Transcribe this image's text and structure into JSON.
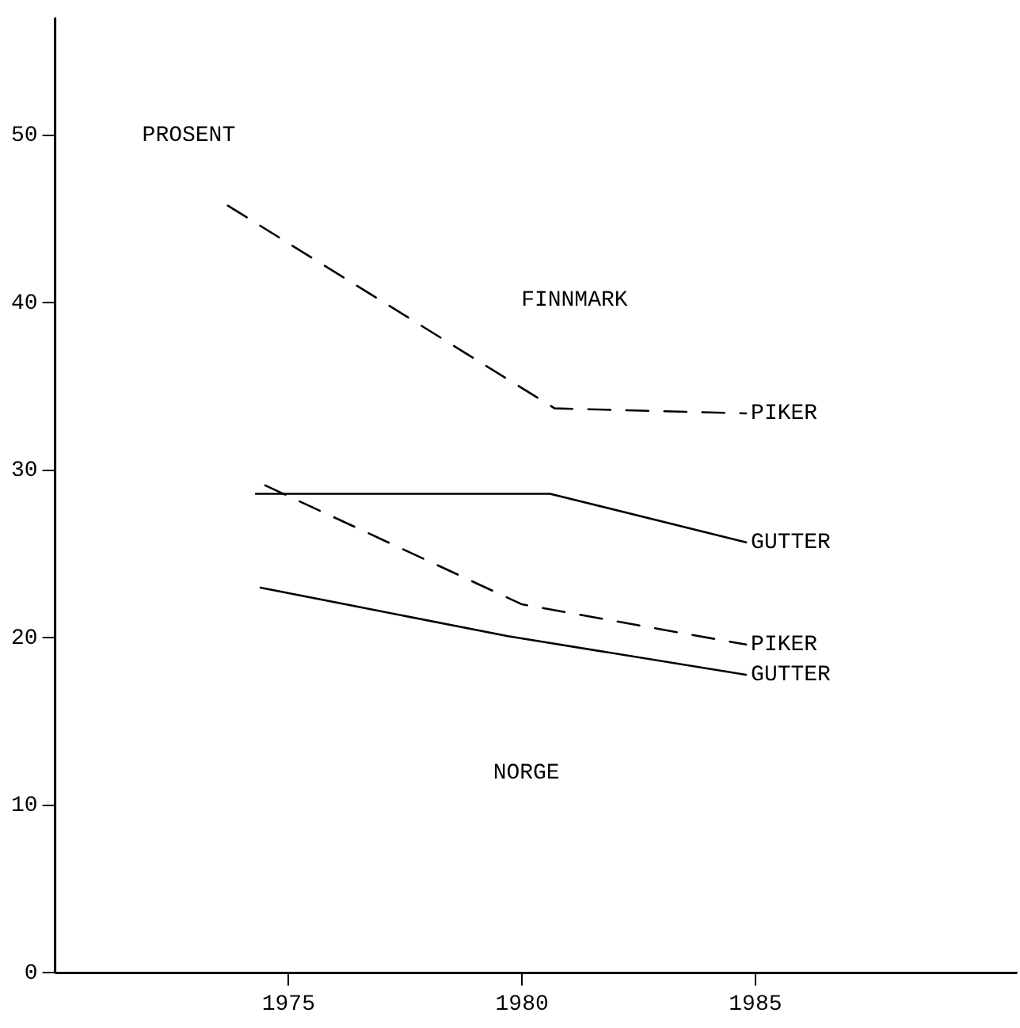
{
  "chart_data": {
    "type": "line",
    "ylabel": "PROSENT",
    "annotations": [
      "FINNMARK",
      "NORGE"
    ],
    "series": [
      {
        "name": "PIKER",
        "color": "#000000",
        "line_style": "dashed",
        "x": [
          1973.7,
          1980.7,
          1984.8
        ],
        "values": [
          45.8,
          33.7,
          33.4
        ]
      },
      {
        "name": "GUTTER",
        "color": "#000000",
        "line_style": "solid",
        "x": [
          1974.3,
          1980.6,
          1984.8
        ],
        "values": [
          28.6,
          28.6,
          25.7
        ]
      },
      {
        "name": "PIKER",
        "color": "#000000",
        "line_style": "dashed",
        "x": [
          1974.5,
          1980,
          1984.8
        ],
        "values": [
          29.1,
          22.0,
          19.6
        ]
      },
      {
        "name": "GUTTER",
        "color": "#000000",
        "line_style": "solid",
        "x": [
          1974.4,
          1979.7,
          1984.8
        ],
        "values": [
          23.0,
          20.1,
          17.8
        ]
      }
    ],
    "xlim": [
      1970,
      1990.6
    ],
    "xticks": [
      1975,
      1980,
      1985
    ],
    "ylim": [
      0,
      57
    ],
    "yticks": [
      0,
      10,
      20,
      30,
      40,
      50
    ],
    "grid": false,
    "legend": false,
    "marker": "none"
  }
}
